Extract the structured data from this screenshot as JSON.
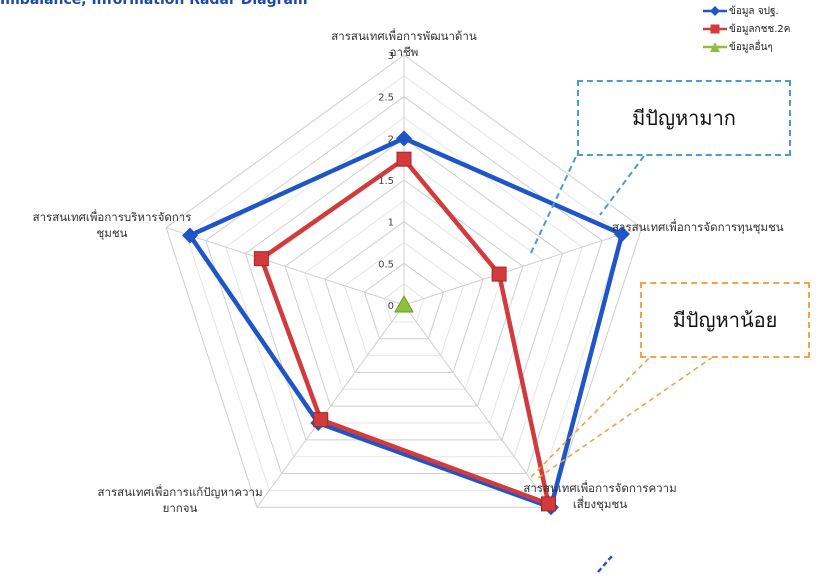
{
  "header": {
    "title": "Imbalance, Information Radar Diagram"
  },
  "callouts": {
    "high_problem": "มีปัญหามาก",
    "low_problem": "มีปัญหาน้อย"
  },
  "legend": [
    {
      "label": "ข้อมูล จปฐ.",
      "color": "#1f55c9",
      "marker": "diamond"
    },
    {
      "label": "ข้อมูลกชช.2ค",
      "color": "#d23b3b",
      "marker": "square"
    },
    {
      "label": "ข้อมูลอื่นๆ",
      "color": "#8fbf3f",
      "marker": "triangle"
    }
  ],
  "chart_data": {
    "type": "radar",
    "axes": [
      "สารสนเทศเพื่อการพัฒนาด้านอาชีพ",
      "สารสนเทศเพื่อการจัดการทุนชุมชน",
      "สารสนเทศเพื่อการจัดการความเสี่ยงชุมชน",
      "สารสนเทศเพื่อการแก้ปัญหาความยากจน",
      "สารสนเทศเพื่อการบริหารจัดการชุมชน"
    ],
    "axis_label_lines": [
      [
        "สารสนเทศเพื่อการพัฒนาด้าน",
        "อาชีพ"
      ],
      [
        "สารสนเทศเพื่อการจัดการทุนชุมชน"
      ],
      [
        "สารสนเทศเพื่อการจัดการความ",
        "เสี่ยงชุมชน"
      ],
      [
        "สารสนเทศเพื่อการแก้ปัญหาความ",
        "ยากจน"
      ],
      [
        "สารสนเทศเพื่อการบริหารจัดการ",
        "ชุมชน"
      ]
    ],
    "ticks": [
      "0",
      "0.5",
      "1",
      "1.5",
      "2",
      "2.5",
      "3"
    ],
    "rmax": 3,
    "series": [
      {
        "name": "ข้อมูล จปฐ.",
        "values": [
          2.0,
          2.75,
          3.0,
          1.75,
          2.7
        ],
        "color": "#1f55c9",
        "marker": "diamond"
      },
      {
        "name": "ข้อมูลกชช.2ค",
        "values": [
          1.75,
          1.2,
          2.95,
          1.7,
          1.8
        ],
        "color": "#d23b3b",
        "marker": "square"
      },
      {
        "name": "ข้อมูลอื่นๆ",
        "values": [
          0,
          0,
          0,
          0,
          0
        ],
        "color": "#8fbf3f",
        "marker": "triangle"
      }
    ],
    "grid": true,
    "legend_position": "top-right"
  }
}
